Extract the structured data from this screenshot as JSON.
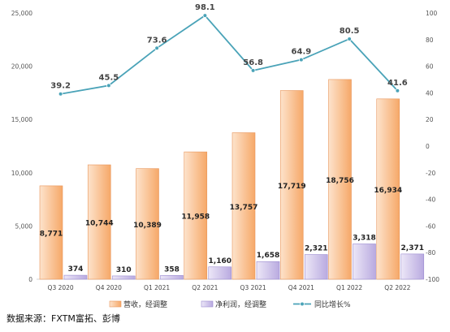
{
  "source_note": "数据来源：FXTM富拓、彭博",
  "chart_data": {
    "type": "bar",
    "categories": [
      "Q3 2020",
      "Q4 2020",
      "Q1 2021",
      "Q2 2021",
      "Q3 2021",
      "Q4 2021",
      "Q1 2022",
      "Q2 2022"
    ],
    "series": [
      {
        "name": "营收，经调整",
        "type": "bar",
        "axis": "left",
        "color": "#f7b27a",
        "values": [
          8771,
          10744,
          10389,
          11958,
          13757,
          17719,
          18756,
          16934
        ],
        "labels": [
          "8,771",
          "10,744",
          "10,389",
          "11,958",
          "13,757",
          "17,719",
          "18,756",
          "16,934"
        ]
      },
      {
        "name": "净利润，经调整",
        "type": "bar",
        "axis": "left",
        "color": "#c5b8e6",
        "values": [
          374,
          310,
          358,
          1160,
          1658,
          2321,
          3318,
          2371
        ],
        "labels": [
          "374",
          "310",
          "358",
          "1,160",
          "1,658",
          "2,321",
          "3,318",
          "2,371"
        ]
      },
      {
        "name": "同比增长%",
        "type": "line",
        "axis": "right",
        "color": "#4aa3b8",
        "values": [
          39.2,
          45.5,
          73.6,
          98.1,
          56.8,
          64.9,
          80.5,
          41.6
        ],
        "labels": [
          "39.2",
          "45.5",
          "73.6",
          "98.1",
          "56.8",
          "64.9",
          "80.5",
          "41.6"
        ]
      }
    ],
    "left_axis": {
      "ylim": [
        0,
        25000
      ],
      "ticks": [
        0,
        5000,
        10000,
        15000,
        20000,
        25000
      ],
      "tick_labels": [
        "0",
        "5,000",
        "10,000",
        "15,000",
        "20,000",
        "25,000"
      ]
    },
    "right_axis": {
      "ylim": [
        -100,
        100
      ],
      "ticks": [
        -100,
        -80,
        -60,
        -40,
        -20,
        0,
        20,
        40,
        60,
        80,
        100
      ],
      "tick_labels": [
        "-100",
        "-80",
        "-60",
        "-40",
        "-20",
        "0",
        "20",
        "40",
        "60",
        "80",
        "100"
      ]
    },
    "grid": false,
    "legend_position": "bottom"
  }
}
